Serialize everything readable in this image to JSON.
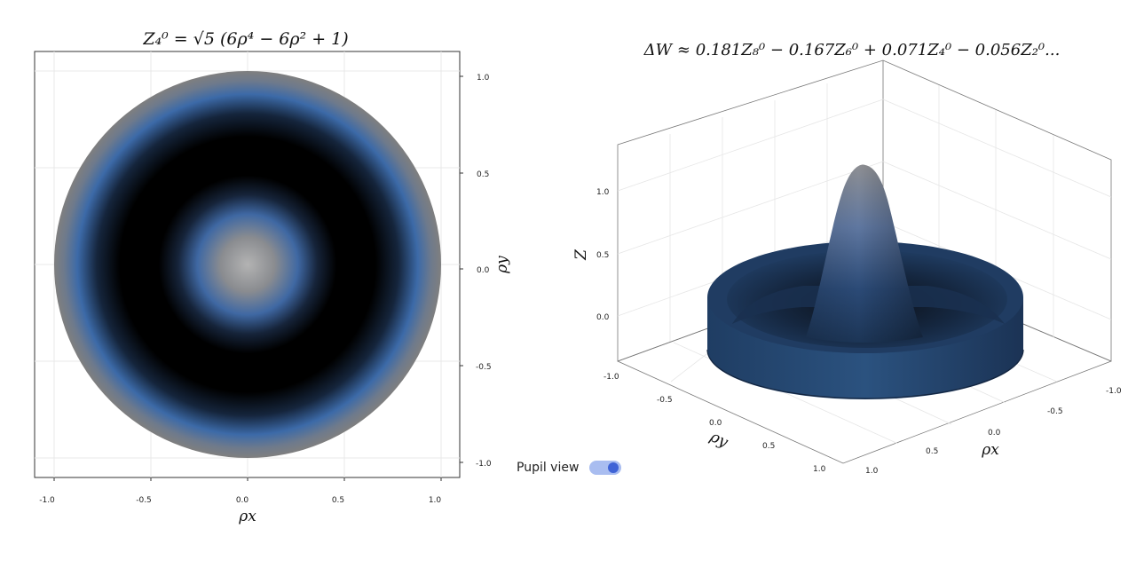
{
  "left_plot": {
    "title": "Z₄⁰ = √5 (6ρ⁴ − 6ρ² + 1)",
    "xlabel": "ρx",
    "ylabel": "ρy",
    "x_ticks": [
      "-1.0",
      "-0.5",
      "0.0",
      "0.5",
      "1.0"
    ],
    "y_ticks": [
      "1.0",
      "0.5",
      "0.0",
      "-0.5",
      "-1.0"
    ]
  },
  "right_plot": {
    "title": "ΔW ≈ 0.181Z₈⁰ − 0.167Z₆⁰ + 0.071Z₄⁰ − 0.056Z₂⁰...",
    "zlabel": "Z",
    "xlabel": "ρx",
    "ylabel": "ρy",
    "z_ticks": [
      "1.0",
      "0.5",
      "0.0"
    ],
    "y_ticks": [
      "-1.0",
      "-0.5",
      "0.0",
      "0.5",
      "1.0"
    ],
    "x_ticks": [
      "-1.0",
      "-0.5",
      "0.0",
      "0.5",
      "1.0"
    ]
  },
  "controls": {
    "pupil_view_label": "Pupil view",
    "pupil_view_on": true
  },
  "colors": {
    "colormap": [
      "#000000",
      "#1c3556",
      "#3d6fb0",
      "#777777",
      "#b3b3b3"
    ],
    "toggle_track": "#a9bdf0",
    "toggle_knob": "#3f63d6"
  }
}
